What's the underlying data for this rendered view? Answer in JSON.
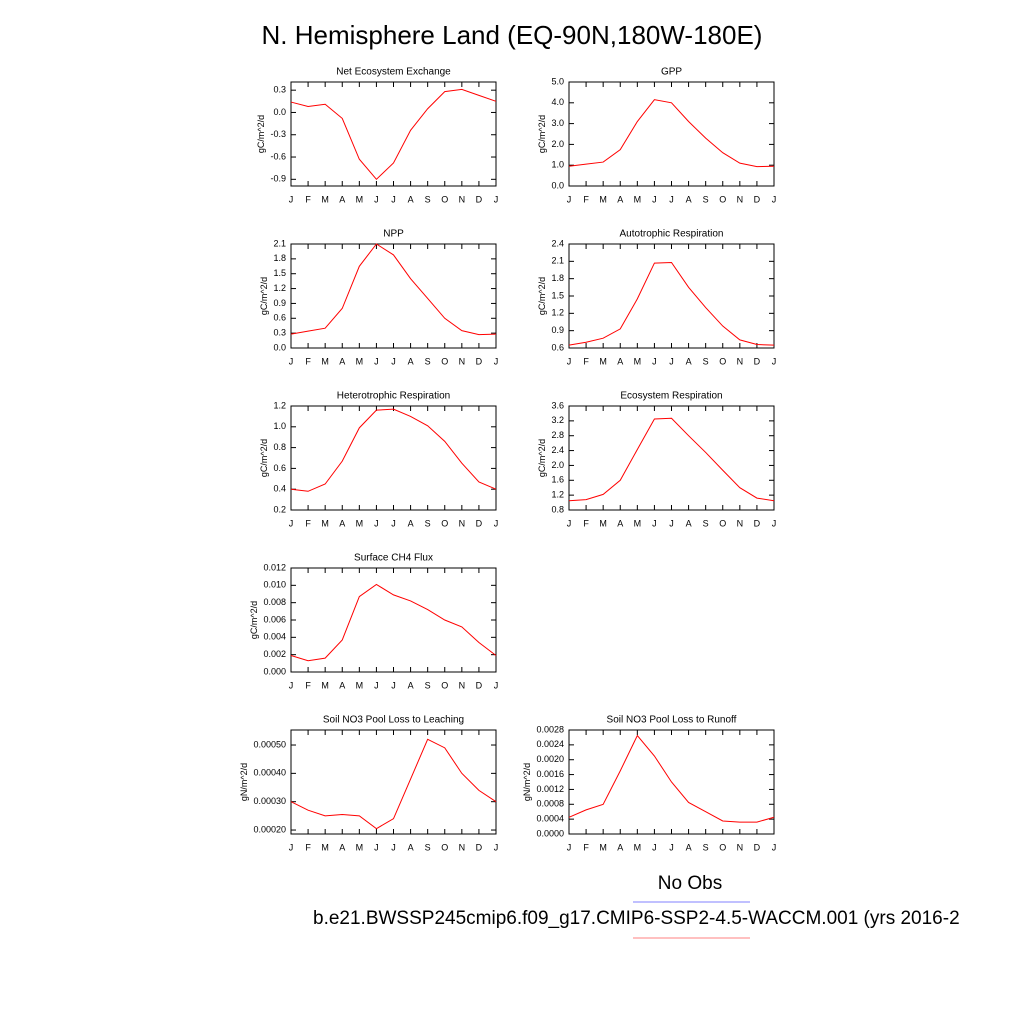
{
  "title": "N. Hemisphere Land (EQ-90N,180W-180E)",
  "legend": [
    {
      "name": "No Obs",
      "color": "#8080ff"
    },
    {
      "name": "b.e21.BWSSP245cmip6.f09_g17.CMIP6-SSP2-4.5-WACCM.001 (yrs 2016-2",
      "color": "#ff8080"
    }
  ],
  "chart_data": [
    {
      "type": "line",
      "title": "Net Ecosystem Exchange",
      "y_label": "gC/m^2/d",
      "color": "#ff0000",
      "categories": [
        "J",
        "F",
        "M",
        "A",
        "M",
        "J",
        "J",
        "A",
        "S",
        "O",
        "N",
        "D",
        "J"
      ],
      "values": [
        0.14,
        0.08,
        0.11,
        -0.08,
        -0.63,
        -0.9,
        -0.68,
        -0.24,
        0.05,
        0.28,
        0.31,
        0.23,
        0.15
      ],
      "ylim": [
        -0.99,
        0.41
      ],
      "yticks": [
        0.3,
        {
          "value": 0,
          "label": "0.0"
        },
        -0.3,
        -0.6,
        -0.9
      ]
    },
    {
      "type": "line",
      "title": "GPP",
      "y_label": "gC/m^2/d",
      "color": "#ff0000",
      "categories": [
        "J",
        "F",
        "M",
        "A",
        "M",
        "J",
        "J",
        "A",
        "S",
        "O",
        "N",
        "D",
        "J"
      ],
      "values": [
        0.95,
        1.05,
        1.15,
        1.75,
        3.1,
        4.15,
        4.0,
        3.1,
        2.3,
        1.6,
        1.1,
        0.93,
        0.95
      ],
      "ylim": [
        0,
        5
      ],
      "yticks": [
        {
          "value": 0,
          "label": "0.0"
        },
        {
          "value": 1,
          "label": "1.0"
        },
        {
          "value": 2,
          "label": "2.0"
        },
        {
          "value": 3,
          "label": "3.0"
        },
        {
          "value": 4,
          "label": "4.0"
        },
        {
          "value": 5,
          "label": "5.0"
        }
      ]
    },
    {
      "type": "line",
      "title": "NPP",
      "y_label": "gC/m^2/d",
      "color": "#ff0000",
      "categories": [
        "J",
        "F",
        "M",
        "A",
        "M",
        "J",
        "J",
        "A",
        "S",
        "O",
        "N",
        "D",
        "J"
      ],
      "values": [
        0.28,
        0.34,
        0.4,
        0.8,
        1.65,
        2.1,
        1.88,
        1.4,
        1.0,
        0.6,
        0.35,
        0.27,
        0.28
      ],
      "ylim": [
        0,
        2.1
      ],
      "yticks": [
        {
          "value": 0,
          "label": "0.0"
        },
        0.3,
        0.6,
        0.9,
        1.2,
        1.5,
        1.8,
        2.1
      ]
    },
    {
      "type": "line",
      "title": "Autotrophic Respiration",
      "y_label": "gC/m^2/d",
      "color": "#ff0000",
      "categories": [
        "J",
        "F",
        "M",
        "A",
        "M",
        "J",
        "J",
        "A",
        "S",
        "O",
        "N",
        "D",
        "J"
      ],
      "values": [
        0.65,
        0.7,
        0.77,
        0.93,
        1.45,
        2.07,
        2.08,
        1.65,
        1.3,
        0.98,
        0.74,
        0.66,
        0.65
      ],
      "ylim": [
        0.6,
        2.4
      ],
      "yticks": [
        0.6,
        0.9,
        1.2,
        1.5,
        1.8,
        2.1,
        2.4
      ]
    },
    {
      "type": "line",
      "title": "Heterotrophic Respiration",
      "y_label": "gC/m^2/d",
      "color": "#ff0000",
      "categories": [
        "J",
        "F",
        "M",
        "A",
        "M",
        "J",
        "J",
        "A",
        "S",
        "O",
        "N",
        "D",
        "J"
      ],
      "values": [
        0.4,
        0.38,
        0.45,
        0.67,
        0.99,
        1.16,
        1.17,
        1.1,
        1.01,
        0.86,
        0.65,
        0.47,
        0.4
      ],
      "ylim": [
        0.2,
        1.2
      ],
      "yticks": [
        0.2,
        0.4,
        0.6,
        0.8,
        {
          "value": 1,
          "label": "1.0"
        },
        1.2
      ]
    },
    {
      "type": "line",
      "title": "Ecosystem Respiration",
      "y_label": "gC/m^2/d",
      "color": "#ff0000",
      "categories": [
        "J",
        "F",
        "M",
        "A",
        "M",
        "J",
        "J",
        "A",
        "S",
        "O",
        "N",
        "D",
        "J"
      ],
      "values": [
        1.05,
        1.08,
        1.22,
        1.6,
        2.43,
        3.25,
        3.27,
        2.8,
        2.35,
        1.87,
        1.4,
        1.12,
        1.05
      ],
      "ylim": [
        0.8,
        3.6
      ],
      "yticks": [
        0.8,
        1.2,
        1.6,
        {
          "value": 2,
          "label": "2.0"
        },
        2.4,
        2.8,
        3.2,
        3.6
      ]
    },
    {
      "type": "line",
      "title": "Surface CH4 Flux",
      "y_label": "gC/m^2/d",
      "color": "#ff0000",
      "categories": [
        "J",
        "F",
        "M",
        "A",
        "M",
        "J",
        "J",
        "A",
        "S",
        "O",
        "N",
        "D",
        "J"
      ],
      "values": [
        0.0019,
        0.0013,
        0.0016,
        0.0037,
        0.0087,
        0.0101,
        0.0089,
        0.0082,
        0.0072,
        0.006,
        0.0052,
        0.0034,
        0.0019
      ],
      "ylim": [
        0,
        0.012
      ],
      "yticks": [
        {
          "value": 0,
          "label": "0.000"
        },
        {
          "value": 0.002,
          "label": "0.002"
        },
        {
          "value": 0.004,
          "label": "0.004"
        },
        {
          "value": 0.006,
          "label": "0.006"
        },
        {
          "value": 0.008,
          "label": "0.008"
        },
        {
          "value": 0.01,
          "label": "0.010"
        },
        {
          "value": 0.012,
          "label": "0.012"
        }
      ]
    },
    {
      "type": "line",
      "title": "Soil NO3 Pool Loss to Leaching",
      "y_label": "gN/m^2/d",
      "color": "#ff0000",
      "categories": [
        "J",
        "F",
        "M",
        "A",
        "M",
        "J",
        "J",
        "A",
        "S",
        "O",
        "N",
        "D",
        "J"
      ],
      "values": [
        0.0003,
        0.00027,
        0.00025,
        0.000255,
        0.00025,
        0.000205,
        0.00024,
        0.00038,
        0.00052,
        0.00049,
        0.0004,
        0.00034,
        0.0003
      ],
      "ylim": [
        0.000186,
        0.000553
      ],
      "yticks": [
        {
          "value": 0.0002,
          "label": "0.00020"
        },
        {
          "value": 0.0003,
          "label": "0.00030"
        },
        {
          "value": 0.0004,
          "label": "0.00040"
        },
        {
          "value": 0.0005,
          "label": "0.00050"
        }
      ]
    },
    {
      "type": "line",
      "title": "Soil NO3 Pool Loss to Runoff",
      "y_label": "gN/m^2/d",
      "color": "#ff0000",
      "categories": [
        "J",
        "F",
        "M",
        "A",
        "M",
        "J",
        "J",
        "A",
        "S",
        "O",
        "N",
        "D",
        "J"
      ],
      "values": [
        0.00045,
        0.00065,
        0.0008,
        0.0017,
        0.00265,
        0.0021,
        0.0014,
        0.00085,
        0.0006,
        0.00035,
        0.00032,
        0.00032,
        0.00045
      ],
      "ylim": [
        0,
        0.0028
      ],
      "yticks": [
        {
          "value": 0,
          "label": "0.0000"
        },
        {
          "value": 0.0004,
          "label": "0.0004"
        },
        {
          "value": 0.0008,
          "label": "0.0008"
        },
        {
          "value": 0.0012,
          "label": "0.0012"
        },
        {
          "value": 0.0016,
          "label": "0.0016"
        },
        {
          "value": 0.002,
          "label": "0.0020"
        },
        {
          "value": 0.0024,
          "label": "0.0024"
        },
        {
          "value": 0.0028,
          "label": "0.0028"
        }
      ]
    }
  ]
}
